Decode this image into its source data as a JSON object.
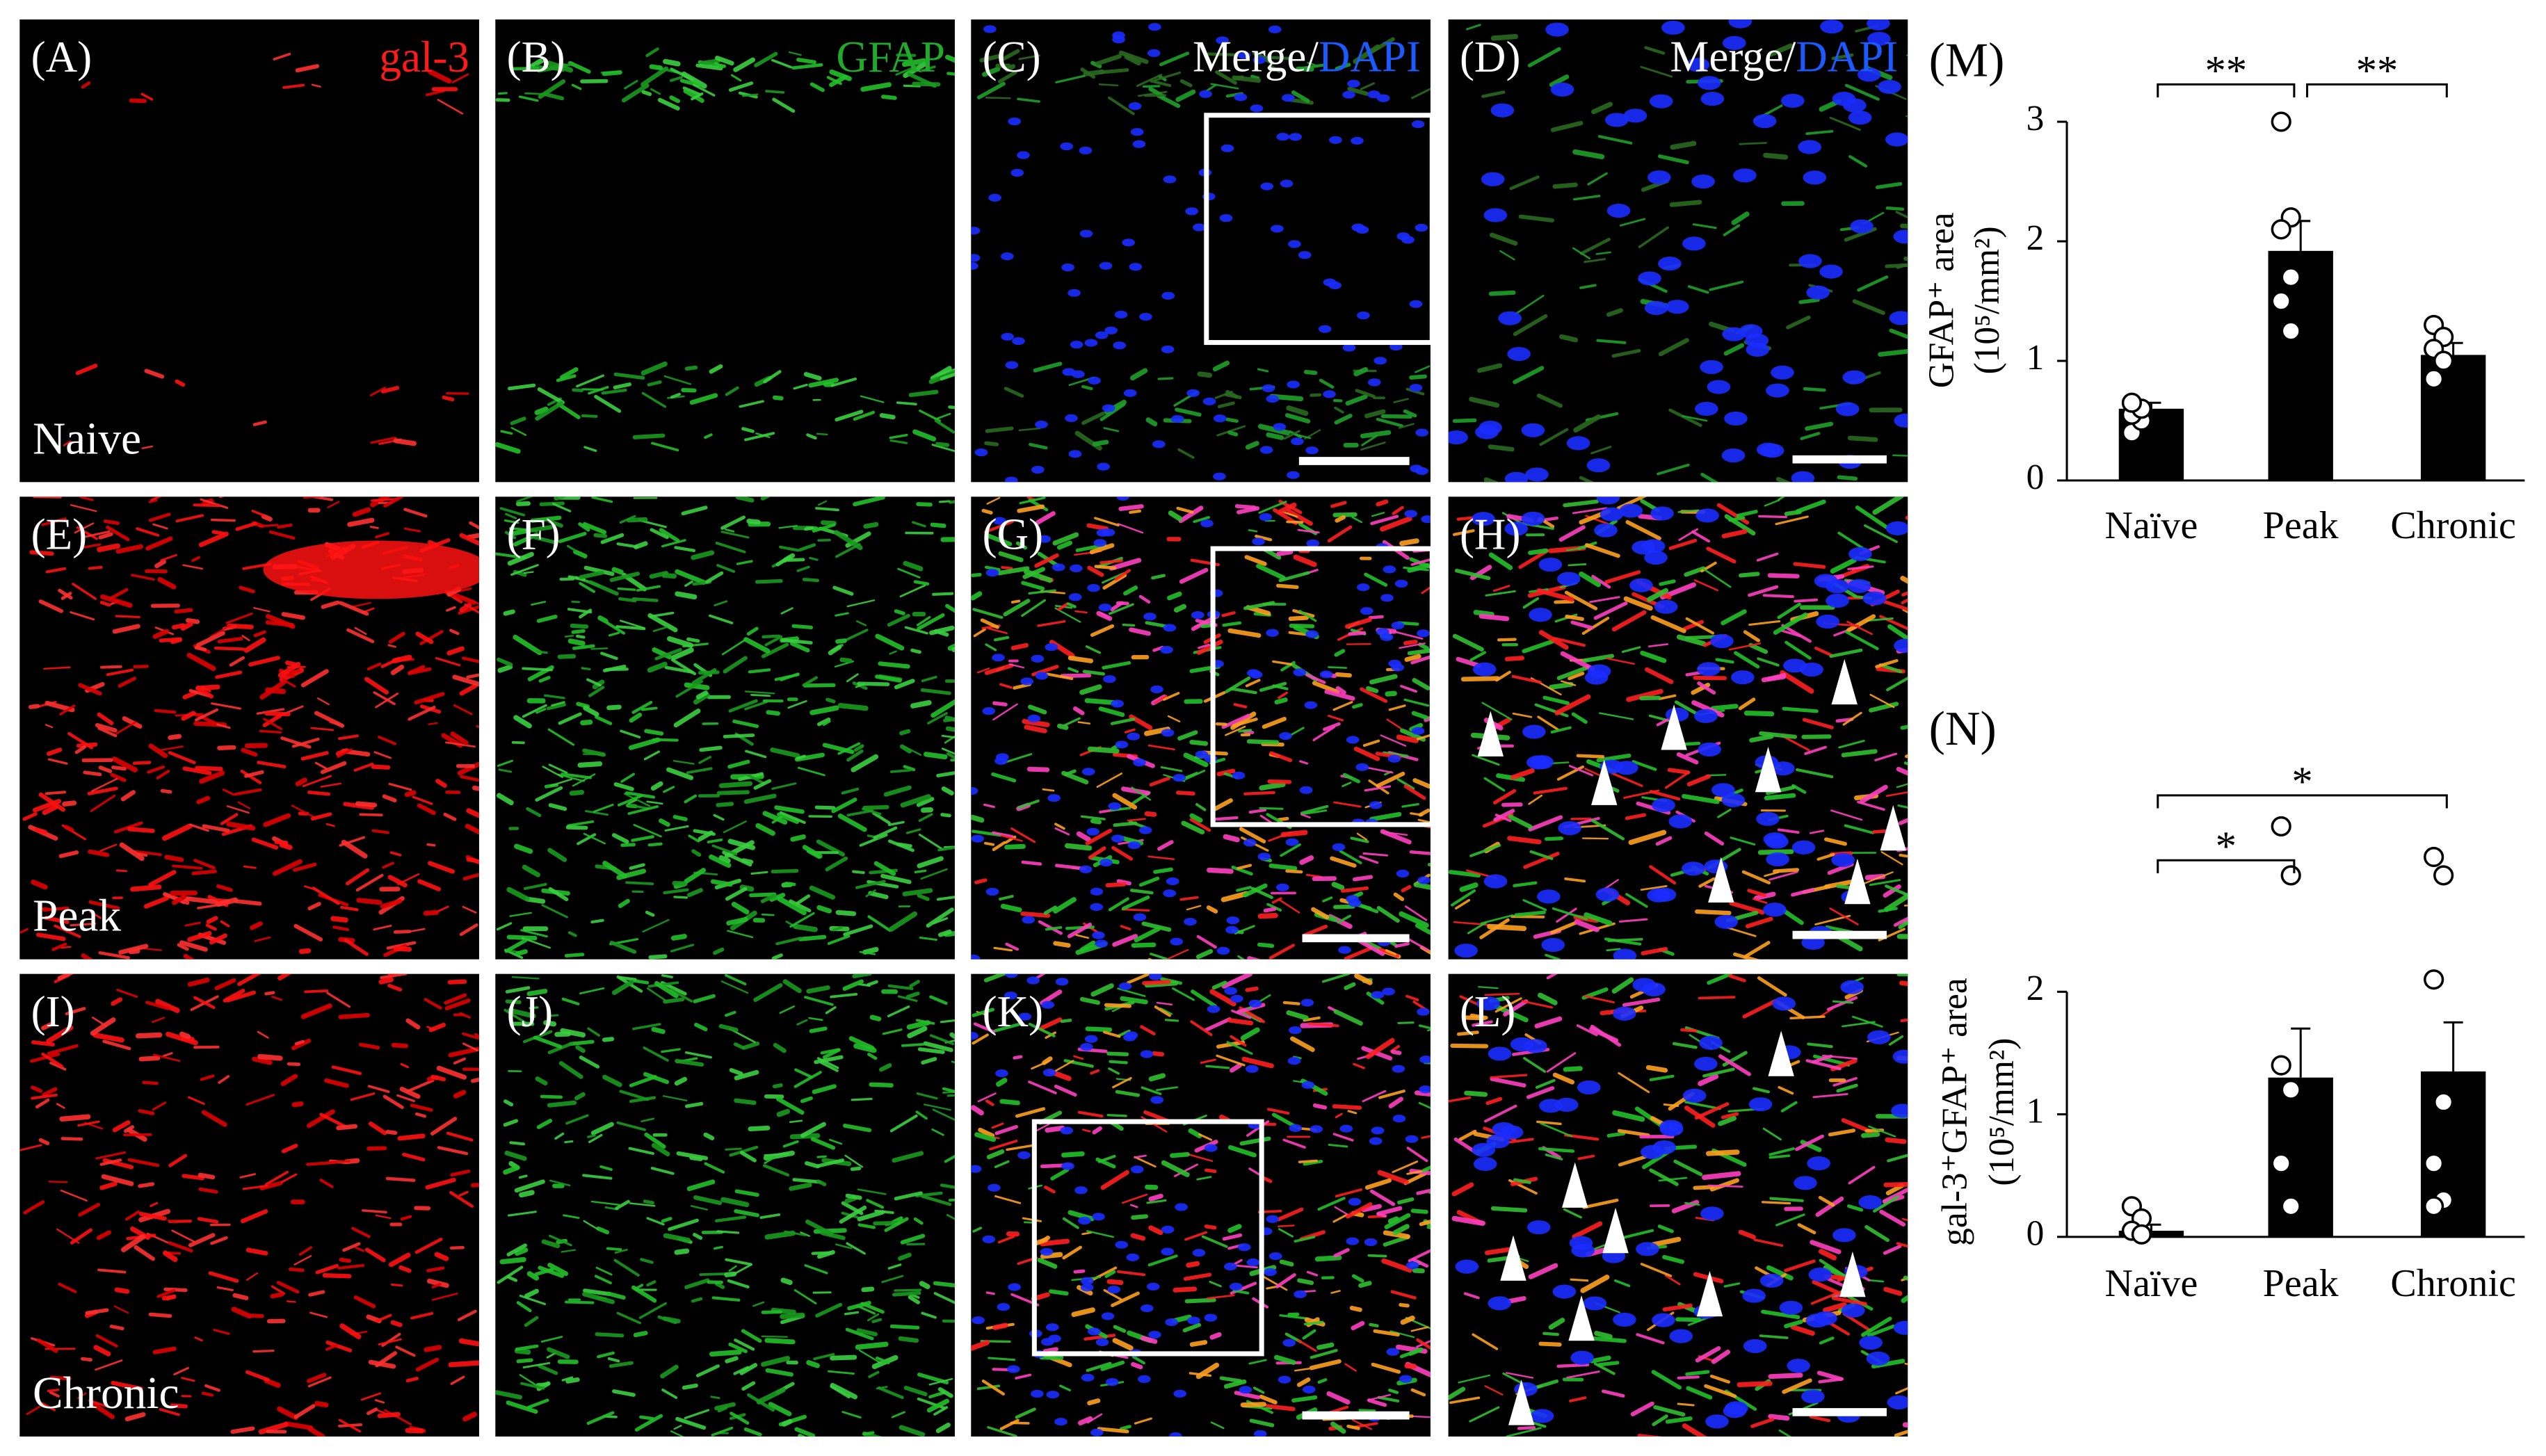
{
  "panels": [
    "(A)",
    "(B)",
    "(C)",
    "(D)",
    "(E)",
    "(F)",
    "(G)",
    "(H)",
    "(I)",
    "(J)",
    "(K)",
    "(L)"
  ],
  "channels": {
    "gal3": "gal-3",
    "gfap": "GFAP",
    "merge": "Merge/",
    "dapi": "DAPI"
  },
  "rows": [
    "Naive",
    "Peak",
    "Chronic"
  ],
  "chart_data": [
    {
      "type": "bar",
      "label": "(M)",
      "ylabel": [
        "GFAP⁺ area",
        "(10⁵/mm²)"
      ],
      "categories": [
        "Naïve",
        "Peak",
        "Chronic"
      ],
      "color": "#000000",
      "values": [
        0.6,
        1.92,
        1.05
      ],
      "errors": [
        0.05,
        0.25,
        0.1
      ],
      "points": [
        [
          0.4,
          0.5,
          0.55,
          0.6,
          0.65
        ],
        [
          3.0,
          2.2,
          2.1,
          1.7,
          1.5,
          1.25
        ],
        [
          1.3,
          1.2,
          1.1,
          1.0,
          0.85
        ]
      ],
      "ylim": [
        0,
        3
      ],
      "yticks": [
        0,
        1,
        2,
        3
      ],
      "annotations": [
        {
          "text": "**",
          "from": 0,
          "to": 1
        },
        {
          "text": "**",
          "from": 1,
          "to": 2
        }
      ]
    },
    {
      "type": "bar",
      "label": "(N)",
      "ylabel": [
        "gal-3⁺GFAP⁺ area",
        "(10⁵/mm²)"
      ],
      "categories": [
        "Naïve",
        "Peak",
        "Chronic"
      ],
      "color": "#000000",
      "values": [
        0.05,
        1.3,
        1.35
      ],
      "errors": [
        0.05,
        0.4,
        0.4
      ],
      "points": [
        [
          0.25,
          0.15,
          0.05,
          0.02
        ],
        [
          3.35,
          2.95,
          1.4,
          1.2,
          0.6,
          0.25
        ],
        [
          3.1,
          2.95,
          2.1,
          1.1,
          0.6,
          0.3,
          0.25
        ]
      ],
      "ylim": [
        0,
        2
      ],
      "yticks": [
        0,
        1,
        2
      ],
      "annotations": [
        {
          "text": "*",
          "from": 0,
          "to": 1
        },
        {
          "text": "*",
          "from": 0,
          "to": 2
        }
      ]
    }
  ]
}
